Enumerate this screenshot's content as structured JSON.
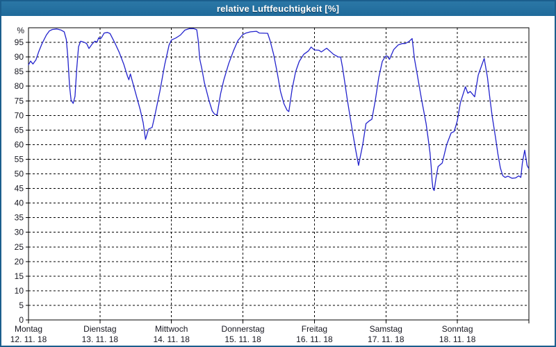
{
  "window": {
    "title": "relative Luftfeuchtigkeit [%]"
  },
  "colors": {
    "titlebar_bg": "#24719f",
    "titlebar_text": "#ffffff",
    "window_border": "#1b5e8d",
    "plot_bg": "#ffffff",
    "frame": "#000000",
    "grid": "#000000",
    "line": "#2222cc",
    "label": "#16161f"
  },
  "chart_data": {
    "type": "line",
    "title": "relative Luftfeuchtigkeit [%]",
    "xlabel": "",
    "ylabel": "%",
    "ylim": [
      0,
      100
    ],
    "y_ticks": [
      0,
      5,
      10,
      15,
      20,
      25,
      30,
      35,
      40,
      45,
      50,
      55,
      60,
      65,
      70,
      75,
      80,
      85,
      90,
      95
    ],
    "grid": "dashed",
    "legend_position": "none",
    "hours_per_day": 24,
    "x_days": [
      {
        "name": "Montag",
        "date": "12. 11. 18"
      },
      {
        "name": "Dienstag",
        "date": "13. 11. 18"
      },
      {
        "name": "Mittwoch",
        "date": "14. 11. 18"
      },
      {
        "name": "Donnerstag",
        "date": "15. 11. 18"
      },
      {
        "name": "Freitag",
        "date": "16. 11. 18"
      },
      {
        "name": "Samstag",
        "date": "17. 11. 18"
      },
      {
        "name": "Sonntag",
        "date": "18. 11. 18"
      }
    ],
    "series": [
      {
        "name": "relative Luftfeuchtigkeit",
        "unit": "%",
        "color": "#2222cc",
        "points": [
          [
            0,
            87.3
          ],
          [
            0.7,
            88.6
          ],
          [
            1.5,
            87.6
          ],
          [
            2.5,
            89.0
          ],
          [
            3.5,
            92.0
          ],
          [
            4.5,
            94.5
          ],
          [
            6,
            97.5
          ],
          [
            7,
            98.9
          ],
          [
            8,
            99.4
          ],
          [
            9.5,
            99.6
          ],
          [
            11,
            99.2
          ],
          [
            12,
            98.6
          ],
          [
            12.7,
            96.0
          ],
          [
            13.2,
            90.0
          ],
          [
            13.8,
            80.0
          ],
          [
            14.3,
            75.2
          ],
          [
            15,
            74.1
          ],
          [
            15.6,
            76.5
          ],
          [
            16.2,
            86.0
          ],
          [
            16.8,
            93.5
          ],
          [
            17.5,
            95.4
          ],
          [
            18.5,
            95.1
          ],
          [
            19.5,
            94.6
          ],
          [
            20.3,
            92.9
          ],
          [
            21.5,
            94.6
          ],
          [
            22.3,
            95.4
          ],
          [
            23.0,
            95.1
          ],
          [
            23.6,
            96.6
          ],
          [
            24.0,
            96.1
          ],
          [
            24.5,
            96.6
          ],
          [
            25.4,
            98.2
          ],
          [
            26.5,
            98.4
          ],
          [
            27.4,
            98.0
          ],
          [
            29,
            94.8
          ],
          [
            30.5,
            91.5
          ],
          [
            32,
            87.5
          ],
          [
            33.2,
            83.5
          ],
          [
            33.7,
            82.2
          ],
          [
            34.2,
            84.2
          ],
          [
            34.8,
            82.0
          ],
          [
            36,
            77.5
          ],
          [
            37.5,
            72.0
          ],
          [
            38.5,
            67.5
          ],
          [
            39.3,
            61.8
          ],
          [
            40.3,
            65.3
          ],
          [
            41.5,
            65.9
          ],
          [
            42.5,
            70.3
          ],
          [
            44.1,
            78.2
          ],
          [
            45.7,
            87.3
          ],
          [
            47.2,
            94.1
          ],
          [
            48,
            95.8
          ],
          [
            49.5,
            96.5
          ],
          [
            51,
            97.5
          ],
          [
            52.5,
            99.2
          ],
          [
            54,
            99.7
          ],
          [
            55.5,
            99.7
          ],
          [
            56.5,
            99.3
          ],
          [
            57,
            95.5
          ],
          [
            57.5,
            89.3
          ],
          [
            58.2,
            86.0
          ],
          [
            59,
            81.4
          ],
          [
            60.6,
            75.1
          ],
          [
            61.7,
            71.5
          ],
          [
            62.5,
            70.4
          ],
          [
            63.3,
            70.2
          ],
          [
            64.5,
            77.4
          ],
          [
            65.6,
            82.2
          ],
          [
            67.2,
            87.7
          ],
          [
            68.8,
            92.1
          ],
          [
            70.3,
            95.6
          ],
          [
            71.9,
            97.6
          ],
          [
            73,
            98.2
          ],
          [
            74.5,
            98.6
          ],
          [
            76.5,
            98.8
          ],
          [
            77.5,
            98.2
          ],
          [
            80.3,
            98.1
          ],
          [
            81.1,
            95.6
          ],
          [
            82.3,
            90.9
          ],
          [
            83.5,
            84.6
          ],
          [
            84.6,
            78.2
          ],
          [
            85.8,
            73.9
          ],
          [
            86.8,
            71.8
          ],
          [
            87.4,
            71.3
          ],
          [
            88.5,
            79.0
          ],
          [
            89.7,
            85.0
          ],
          [
            90.9,
            88.5
          ],
          [
            92.4,
            90.9
          ],
          [
            94,
            92.1
          ],
          [
            94.9,
            93.4
          ],
          [
            96,
            92.4
          ],
          [
            97.5,
            92.3
          ],
          [
            98.3,
            91.7
          ],
          [
            100.1,
            93.0
          ],
          [
            102.4,
            90.9
          ],
          [
            104,
            90.0
          ],
          [
            104.8,
            90.0
          ],
          [
            105.5,
            86.1
          ],
          [
            107.1,
            75.0
          ],
          [
            108.6,
            65.6
          ],
          [
            109.8,
            58.4
          ],
          [
            110.8,
            52.9
          ],
          [
            112.2,
            60.0
          ],
          [
            113.3,
            67.2
          ],
          [
            114.5,
            68.2
          ],
          [
            115.3,
            68.7
          ],
          [
            116.4,
            75.0
          ],
          [
            117.6,
            83.0
          ],
          [
            118.8,
            88.5
          ],
          [
            119.8,
            90.2
          ],
          [
            120.3,
            90.4
          ],
          [
            121.2,
            89.2
          ],
          [
            122.6,
            92.5
          ],
          [
            124.1,
            94.1
          ],
          [
            125.5,
            94.6
          ],
          [
            126.5,
            94.6
          ],
          [
            127.6,
            95.2
          ],
          [
            128.8,
            96.3
          ],
          [
            129.6,
            89.3
          ],
          [
            130.4,
            84.6
          ],
          [
            131.9,
            75.8
          ],
          [
            133.5,
            67.2
          ],
          [
            134.2,
            62.0
          ],
          [
            134.8,
            57.2
          ],
          [
            135.2,
            52.5
          ],
          [
            135.5,
            47.7
          ],
          [
            135.8,
            45.0
          ],
          [
            136.2,
            44.3
          ],
          [
            136.8,
            48.5
          ],
          [
            137.5,
            52.5
          ],
          [
            138.9,
            53.7
          ],
          [
            140.4,
            60.0
          ],
          [
            141.9,
            64.0
          ],
          [
            142.9,
            64.5
          ],
          [
            143.5,
            66.5
          ],
          [
            144,
            68.3
          ],
          [
            145,
            74.3
          ],
          [
            146.7,
            79.8
          ],
          [
            147.5,
            77.6
          ],
          [
            148.3,
            78.2
          ],
          [
            149.8,
            76.4
          ],
          [
            151,
            83.8
          ],
          [
            152.2,
            87.3
          ],
          [
            153,
            89.5
          ],
          [
            154.1,
            83.0
          ],
          [
            154.9,
            75.8
          ],
          [
            155.7,
            69.5
          ],
          [
            156.8,
            62.4
          ],
          [
            157.6,
            56.8
          ],
          [
            158.4,
            52.1
          ],
          [
            159.2,
            49.4
          ],
          [
            160,
            48.8
          ],
          [
            161,
            49.2
          ],
          [
            162.3,
            48.5
          ],
          [
            163.5,
            48.6
          ],
          [
            164.6,
            49.3
          ],
          [
            165.3,
            48.8
          ],
          [
            165.8,
            53.7
          ],
          [
            166.6,
            58.1
          ],
          [
            167.4,
            52.9
          ],
          [
            167.9,
            51.9
          ]
        ]
      }
    ]
  }
}
